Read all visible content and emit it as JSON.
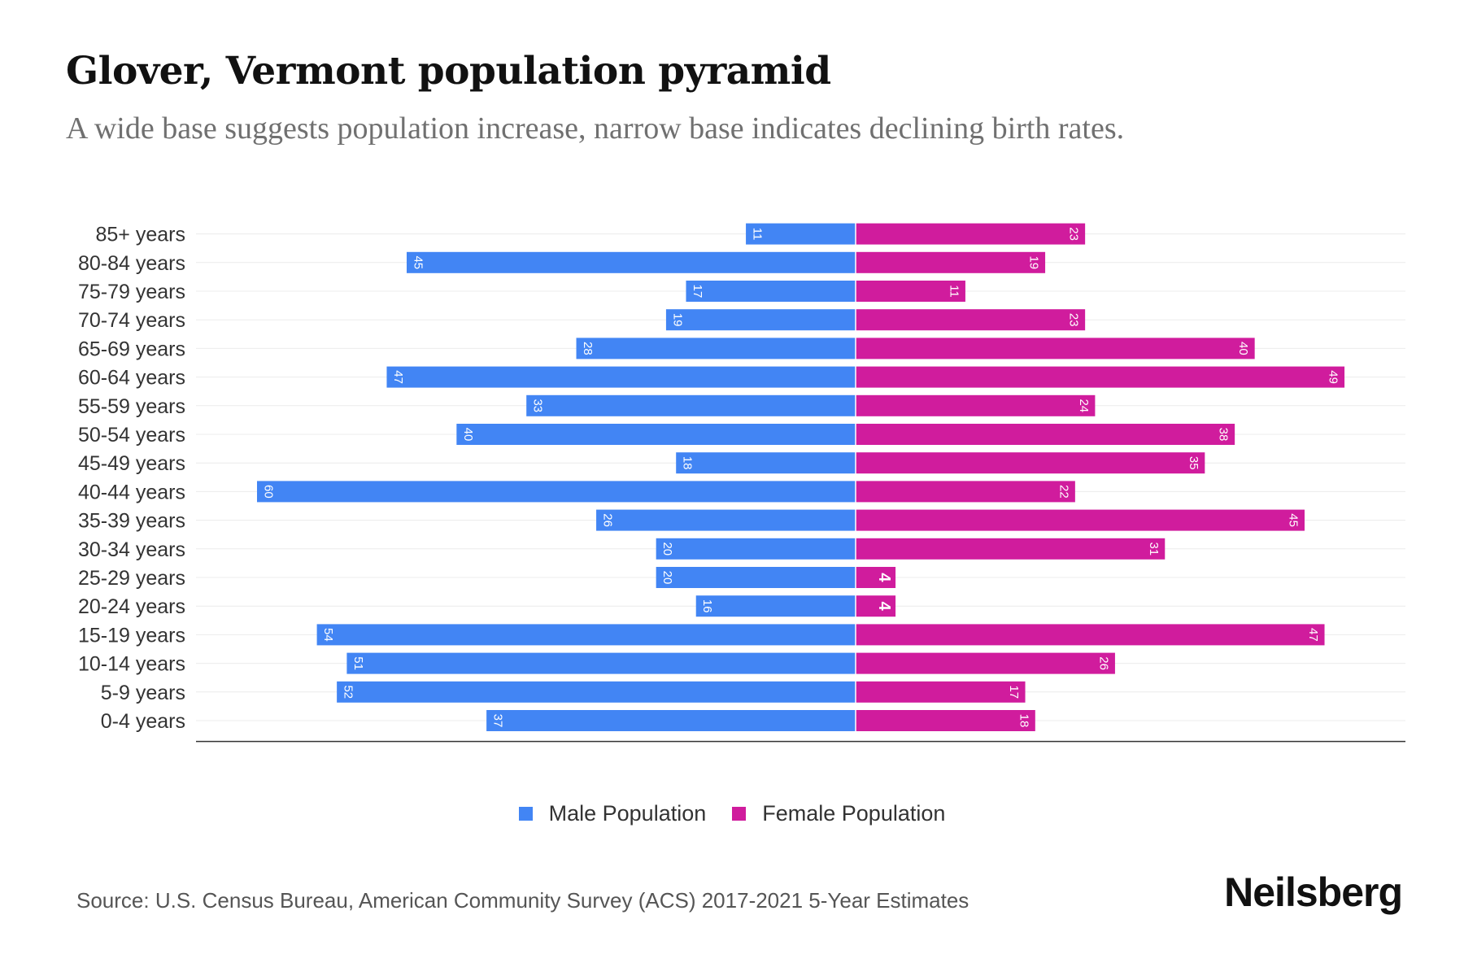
{
  "title": "Glover, Vermont population pyramid",
  "subtitle": "A wide base suggests population increase, narrow base indicates declining birth rates.",
  "source": "Source: U.S. Census Bureau, American Community Survey (ACS) 2017-2021 5-Year Estimates",
  "brand": "Neilsberg",
  "colors": {
    "male": "#4285f4",
    "female": "#d01c9d"
  },
  "legend": {
    "male_label": "Male Population",
    "female_label": "Female Population"
  },
  "chart_data": {
    "type": "bar",
    "orientation": "horizontal-pyramid",
    "title": "Glover, Vermont population pyramid",
    "categories": [
      "85+ years",
      "80-84 years",
      "75-79 years",
      "70-74 years",
      "65-69 years",
      "60-64 years",
      "55-59 years",
      "50-54 years",
      "45-49 years",
      "40-44 years",
      "35-39 years",
      "30-34 years",
      "25-29 years",
      "20-24 years",
      "15-19 years",
      "10-14 years",
      "5-9 years",
      "0-4 years"
    ],
    "series": [
      {
        "name": "Male Population",
        "values": [
          11,
          45,
          17,
          19,
          28,
          47,
          33,
          40,
          18,
          60,
          26,
          20,
          20,
          16,
          54,
          51,
          52,
          37
        ]
      },
      {
        "name": "Female Population",
        "values": [
          23,
          19,
          11,
          23,
          40,
          49,
          24,
          38,
          35,
          22,
          45,
          31,
          4,
          4,
          47,
          26,
          17,
          18
        ]
      }
    ],
    "xlim": [
      -66,
      55
    ],
    "legend_position": "bottom-center"
  }
}
